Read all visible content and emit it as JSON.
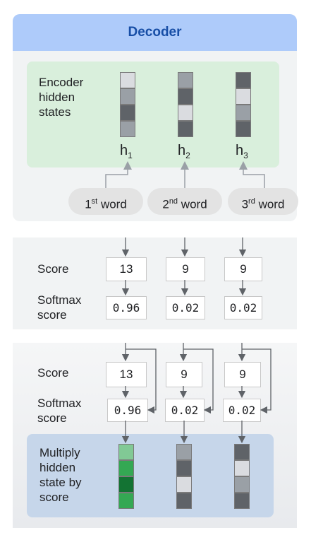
{
  "header": {
    "title": "Decoder"
  },
  "encoder": {
    "label_lines": [
      "Encoder",
      "hidden",
      "states"
    ],
    "states": [
      {
        "h": "h",
        "sub": "1",
        "colors": [
          "#dadce0",
          "#9aa0a6",
          "#5f6368",
          "#9aa0a6"
        ]
      },
      {
        "h": "h",
        "sub": "2",
        "colors": [
          "#9aa0a6",
          "#5f6368",
          "#dadce0",
          "#5f6368"
        ]
      },
      {
        "h": "h",
        "sub": "3",
        "colors": [
          "#5f6368",
          "#dadce0",
          "#9aa0a6",
          "#5f6368"
        ]
      }
    ],
    "words": [
      {
        "ord": "1",
        "sup": "st",
        "word": "word"
      },
      {
        "ord": "2",
        "sup": "nd",
        "word": "word"
      },
      {
        "ord": "3",
        "sup": "rd",
        "word": "word"
      }
    ]
  },
  "panel2": {
    "score_label": "Score",
    "softmax_label_lines": [
      "Softmax",
      "score"
    ],
    "scores": [
      "13",
      "9",
      "9"
    ],
    "softmax": [
      "0.96",
      "0.02",
      "0.02"
    ]
  },
  "panel3": {
    "score_label": "Score",
    "softmax_label_lines": [
      "Softmax",
      "score"
    ],
    "scores": [
      "13",
      "9",
      "9"
    ],
    "softmax": [
      "0.96",
      "0.02",
      "0.02"
    ],
    "multiply_label_lines": [
      "Multiply",
      "hidden",
      "state by",
      "score"
    ],
    "weighted": [
      {
        "colors": [
          "#81c995",
          "#34a853",
          "#137333",
          "#34a853"
        ]
      },
      {
        "colors": [
          "#9aa0a6",
          "#5f6368",
          "#dadce0",
          "#5f6368"
        ]
      },
      {
        "colors": [
          "#5f6368",
          "#dadce0",
          "#9aa0a6",
          "#5f6368"
        ]
      }
    ]
  }
}
